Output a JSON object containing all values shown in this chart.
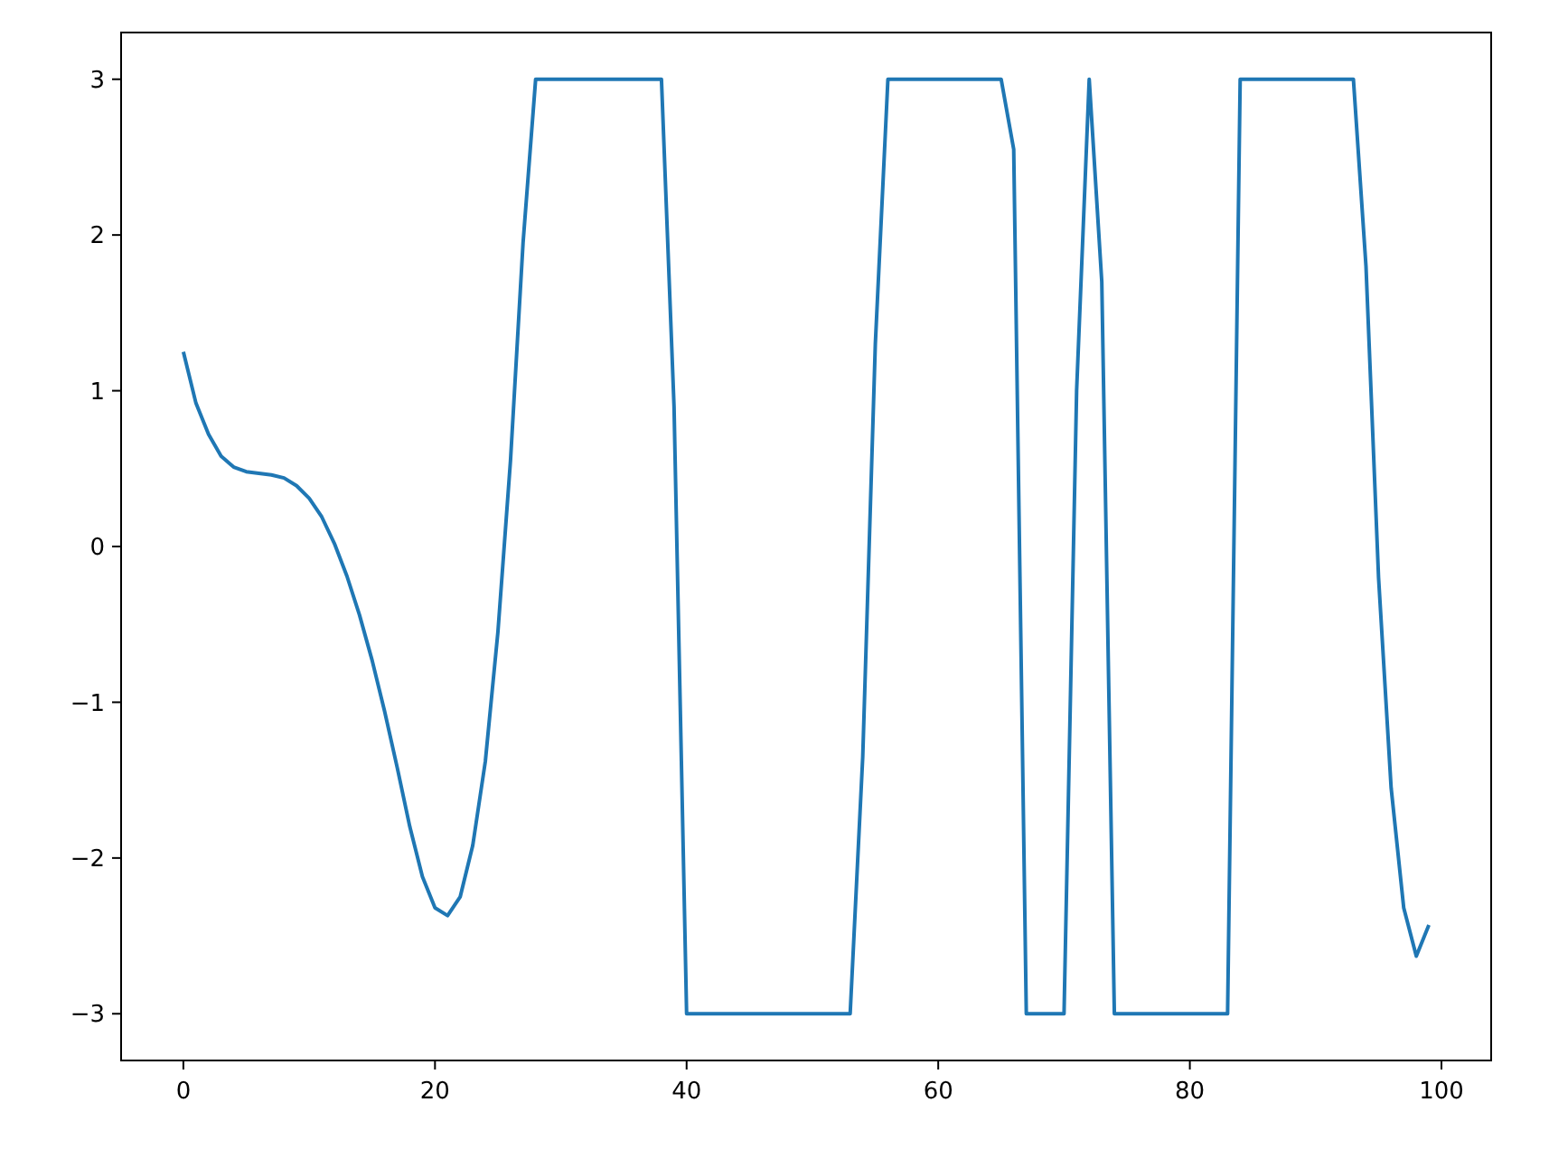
{
  "chart_data": {
    "type": "line",
    "x": [
      0,
      1,
      2,
      3,
      4,
      5,
      6,
      7,
      8,
      9,
      10,
      11,
      12,
      13,
      14,
      15,
      16,
      17,
      18,
      19,
      20,
      21,
      22,
      23,
      24,
      25,
      26,
      27,
      28,
      29,
      30,
      31,
      32,
      33,
      34,
      35,
      36,
      37,
      38,
      39,
      40,
      41,
      42,
      43,
      44,
      45,
      46,
      47,
      48,
      49,
      50,
      51,
      52,
      53,
      54,
      55,
      56,
      57,
      58,
      59,
      60,
      61,
      62,
      63,
      64,
      65,
      66,
      67,
      68,
      69,
      70,
      71,
      72,
      73,
      74,
      75,
      76,
      77,
      78,
      79,
      80,
      81,
      82,
      83,
      84,
      85,
      86,
      87,
      88,
      89,
      90,
      91,
      92,
      93,
      94,
      95,
      96,
      97,
      98,
      99
    ],
    "series": [
      {
        "color": "#1f77b4",
        "values": [
          1.25,
          0.92,
          0.72,
          0.58,
          0.51,
          0.48,
          0.47,
          0.46,
          0.44,
          0.39,
          0.31,
          0.19,
          0.02,
          -0.19,
          -0.44,
          -0.73,
          -1.06,
          -1.42,
          -1.8,
          -2.12,
          -2.32,
          -2.37,
          -2.25,
          -1.92,
          -1.38,
          -0.55,
          0.55,
          1.95,
          3,
          3,
          3,
          3,
          3,
          3,
          3,
          3,
          3,
          3,
          3,
          0.9,
          -3,
          -3,
          -3,
          -3,
          -3,
          -3,
          -3,
          -3,
          -3,
          -3,
          -3,
          -3,
          -3,
          -3,
          -1.35,
          1.3,
          3,
          3,
          3,
          3,
          3,
          3,
          3,
          3,
          3,
          3,
          2.55,
          -3,
          -3,
          -3,
          -3,
          1.0,
          3,
          1.7,
          -3,
          -3,
          -3,
          -3,
          -3,
          -3,
          -3,
          -3,
          -3,
          -3,
          3,
          3,
          3,
          3,
          3,
          3,
          3,
          3,
          3,
          3,
          1.8,
          -0.2,
          -1.55,
          -2.32,
          -2.63,
          -2.43
        ]
      }
    ],
    "xlim": [
      -4.95,
      103.95
    ],
    "xticks": [
      0,
      20,
      40,
      60,
      80,
      100
    ],
    "ylim": [
      -3.3,
      3.3
    ],
    "yticks": [
      -3,
      -2,
      -1,
      0,
      1,
      2,
      3
    ]
  }
}
